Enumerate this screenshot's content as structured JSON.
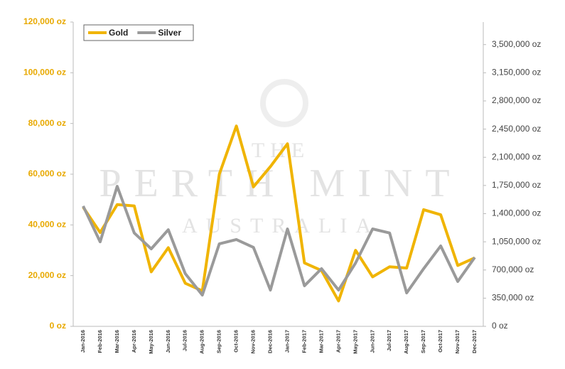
{
  "chart_data": {
    "type": "line",
    "watermark": [
      "THE",
      "PERTH MINT",
      "AUSTRALIA"
    ],
    "categories": [
      "Jan-2016",
      "Feb-2016",
      "Mar-2016",
      "Apr-2016",
      "May-2016",
      "Jun-2016",
      "Jul-2016",
      "Aug-2016",
      "Sep-2016",
      "Oct-2016",
      "Nov-2016",
      "Dec-2016",
      "Jan-2017",
      "Feb-2017",
      "Mar-2017",
      "Apr-2017",
      "May-2017",
      "Jun-2017",
      "Jul-2017",
      "Aug-2017",
      "Sep-2017",
      "Oct-2017",
      "Nov-2017",
      "Dec-2017"
    ],
    "series": [
      {
        "name": "Gold",
        "color": "#f0b400",
        "values": [
          47000,
          37000,
          48000,
          47500,
          21500,
          31000,
          17000,
          14000,
          60000,
          79000,
          55000,
          63000,
          72000,
          25000,
          22000,
          10000,
          30000,
          19500,
          23500,
          23000,
          46000,
          44000,
          24000,
          27000
        ]
      },
      {
        "name": "Silver",
        "color": "#9a9a9a",
        "axis": "y2",
        "values": [
          1494000,
          1050000,
          1740000,
          1160000,
          963000,
          1200000,
          654000,
          389000,
          1025000,
          1078000,
          981000,
          450000,
          1210000,
          504000,
          716000,
          450000,
          787000,
          1210000,
          1160000,
          415000,
          716000,
          999000,
          557000,
          857000
        ]
      }
    ],
    "ylim": [
      0,
      120000
    ],
    "yticks": [
      {
        "value": 0,
        "label": "0 oz"
      },
      {
        "value": 20000,
        "label": "20,000 oz"
      },
      {
        "value": 40000,
        "label": "40,000 oz"
      },
      {
        "value": 60000,
        "label": "60,000 oz"
      },
      {
        "value": 80000,
        "label": "80,000 oz"
      },
      {
        "value": 100000,
        "label": "100,000 oz"
      },
      {
        "value": 120000,
        "label": "120,000 oz"
      }
    ],
    "y2lim": [
      0,
      3780000
    ],
    "y2ticks": [
      {
        "value": 0,
        "label": "0 oz"
      },
      {
        "value": 350000,
        "label": "350,000 oz"
      },
      {
        "value": 700000,
        "label": "700,000 oz"
      },
      {
        "value": 1050000,
        "label": "1,050,000 oz"
      },
      {
        "value": 1400000,
        "label": "1,400,000 oz"
      },
      {
        "value": 1750000,
        "label": "1,750,000 oz"
      },
      {
        "value": 2100000,
        "label": "2,100,000 oz"
      },
      {
        "value": 2450000,
        "label": "2,450,000 oz"
      },
      {
        "value": 2800000,
        "label": "2,800,000 oz"
      },
      {
        "value": 3150000,
        "label": "3,150,000 oz"
      },
      {
        "value": 3500000,
        "label": "3,500,000 oz"
      }
    ],
    "legend": "top-left"
  }
}
